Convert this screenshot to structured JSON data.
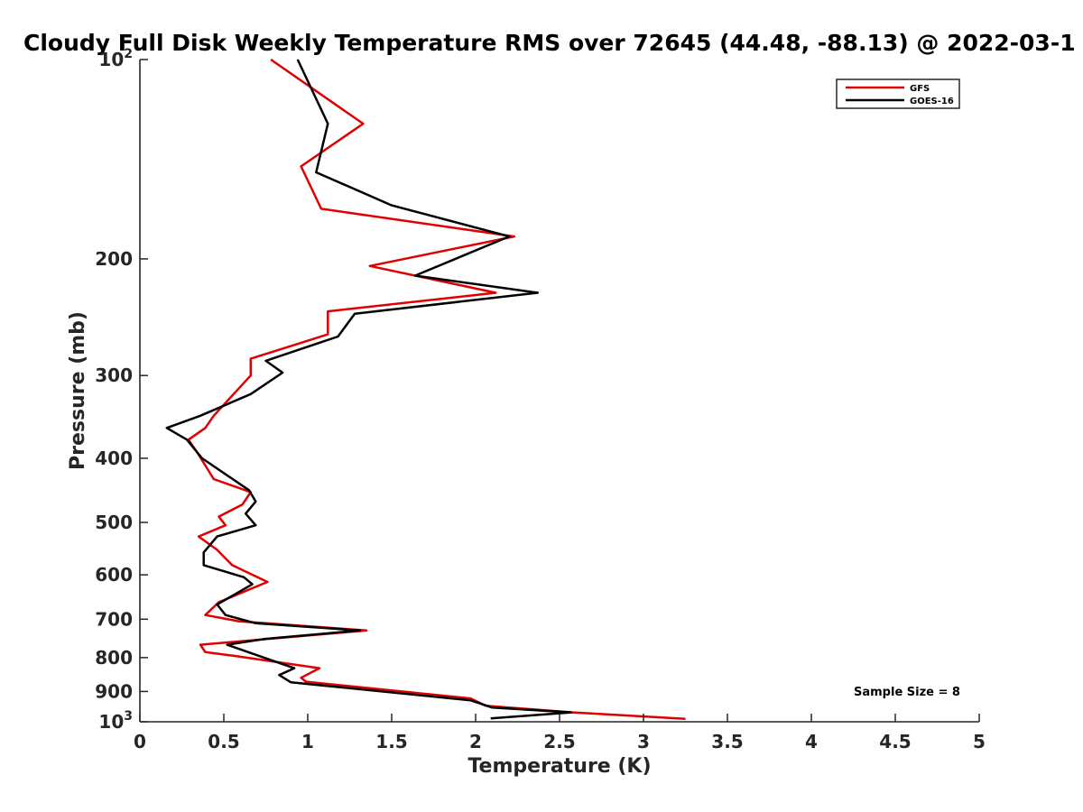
{
  "chart_data": {
    "type": "line",
    "title": "Cloudy Full Disk Weekly Temperature RMS over 72645 (44.48, -88.13) @ 2022-03-1",
    "xlabel": "Temperature (K)",
    "ylabel": "Pressure (mb)",
    "xlim": [
      0,
      5
    ],
    "ylim": [
      100,
      1000
    ],
    "y_scale": "log",
    "y_reversed": true,
    "grid": false,
    "legend_position": "top-right",
    "x_ticks": [
      "0",
      "0.5",
      "1",
      "1.5",
      "2",
      "2.5",
      "3",
      "3.5",
      "4",
      "4.5",
      "5"
    ],
    "x_tick_values": [
      0,
      0.5,
      1,
      1.5,
      2,
      2.5,
      3,
      3.5,
      4,
      4.5,
      5
    ],
    "y_ticks": [
      {
        "value": 100,
        "label": "10",
        "sup": "2"
      },
      {
        "value": 200,
        "label": "200",
        "sup": ""
      },
      {
        "value": 300,
        "label": "300",
        "sup": ""
      },
      {
        "value": 400,
        "label": "400",
        "sup": ""
      },
      {
        "value": 500,
        "label": "500",
        "sup": ""
      },
      {
        "value": 600,
        "label": "600",
        "sup": ""
      },
      {
        "value": 700,
        "label": "700",
        "sup": ""
      },
      {
        "value": 800,
        "label": "800",
        "sup": ""
      },
      {
        "value": 900,
        "label": "900",
        "sup": ""
      },
      {
        "value": 1000,
        "label": "10",
        "sup": "3"
      }
    ],
    "annotation": "Sample Size = 8",
    "series": [
      {
        "name": "GFS",
        "color": "#e00000",
        "x": [
          0.78,
          1.33,
          0.96,
          1.08,
          2.23,
          1.37,
          2.12,
          1.12,
          1.12,
          0.66,
          0.66,
          0.44,
          0.39,
          0.29,
          0.35,
          0.44,
          0.66,
          0.61,
          0.47,
          0.51,
          0.35,
          0.46,
          0.55,
          0.76,
          0.47,
          0.39,
          0.59,
          1.35,
          0.36,
          0.39,
          0.56,
          1.07,
          0.96,
          0.99,
          1.97,
          2.06,
          2.58,
          3.25
        ],
        "y": [
          100,
          125,
          145,
          168,
          185,
          205,
          225,
          240,
          260,
          283,
          300,
          345,
          360,
          375,
          395,
          430,
          450,
          470,
          490,
          505,
          525,
          550,
          580,
          615,
          660,
          690,
          705,
          728,
          765,
          785,
          795,
          830,
          858,
          870,
          922,
          946,
          968,
          990
        ]
      },
      {
        "name": "GOES-16",
        "color": "#000000",
        "x": [
          0.94,
          1.12,
          1.05,
          1.5,
          2.2,
          1.64,
          2.37,
          1.28,
          1.18,
          0.75,
          0.85,
          0.66,
          0.36,
          0.16,
          0.28,
          0.37,
          0.65,
          0.69,
          0.63,
          0.69,
          0.46,
          0.38,
          0.38,
          0.62,
          0.67,
          0.46,
          0.51,
          0.69,
          1.31,
          0.74,
          0.52,
          0.83,
          0.92,
          0.83,
          0.9,
          1.97,
          2.1,
          2.57,
          2.09
        ],
        "y": [
          100,
          125,
          148,
          166,
          185,
          212,
          225,
          242,
          262,
          285,
          297,
          320,
          345,
          360,
          375,
          400,
          447,
          465,
          485,
          505,
          525,
          555,
          580,
          605,
          620,
          665,
          690,
          710,
          728,
          750,
          765,
          815,
          830,
          850,
          872,
          928,
          952,
          968,
          988
        ]
      }
    ]
  }
}
